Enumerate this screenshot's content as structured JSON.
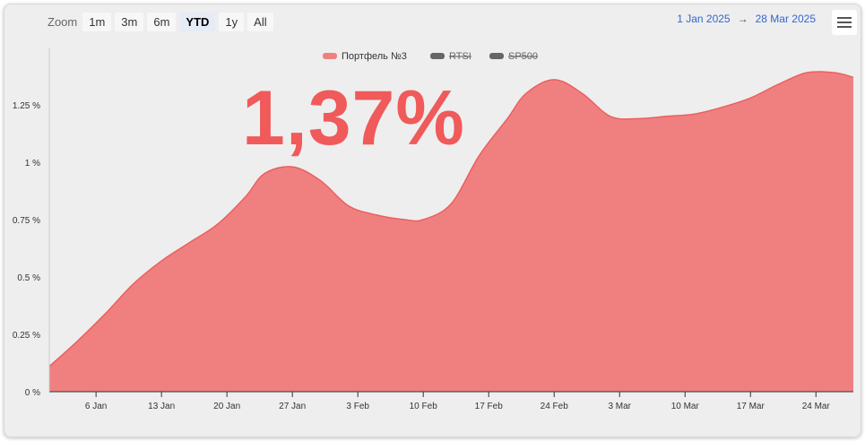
{
  "toolbar": {
    "zoom_label": "Zoom",
    "buttons": [
      "1m",
      "3m",
      "6m",
      "YTD",
      "1y",
      "All"
    ],
    "active": "YTD"
  },
  "range": {
    "from": "1 Jan 2025",
    "arrow": "→",
    "to": "28 Mar 2025"
  },
  "headline_value": "1,37%",
  "colors": {
    "series": "#f08080",
    "series_line": "#ec5f5f",
    "legend_hidden": "#666666"
  },
  "chart_data": {
    "type": "area",
    "legend": [
      {
        "name": "Портфель №3",
        "visible": true,
        "color": "#f08080"
      },
      {
        "name": "RTSI",
        "visible": false,
        "color": "#666666"
      },
      {
        "name": "SP500",
        "visible": false,
        "color": "#666666"
      }
    ],
    "x_ticks": [
      "6 Jan",
      "13 Jan",
      "20 Jan",
      "27 Jan",
      "3 Feb",
      "10 Feb",
      "17 Feb",
      "24 Feb",
      "3 Mar",
      "10 Mar",
      "17 Mar",
      "24 Mar"
    ],
    "y_ticks": [
      "0 %",
      "0.25 %",
      "0.5 %",
      "0.75 %",
      "1 %",
      "1.25 %"
    ],
    "ylim": [
      0,
      1.5
    ],
    "xlim": [
      "2025-01-01",
      "2025-03-28"
    ],
    "series": [
      {
        "name": "Портфель №3",
        "x": [
          "2025-01-01",
          "2025-01-04",
          "2025-01-07",
          "2025-01-10",
          "2025-01-13",
          "2025-01-16",
          "2025-01-19",
          "2025-01-22",
          "2025-01-24",
          "2025-01-27",
          "2025-01-30",
          "2025-02-02",
          "2025-02-05",
          "2025-02-08",
          "2025-02-10",
          "2025-02-13",
          "2025-02-16",
          "2025-02-19",
          "2025-02-21",
          "2025-02-24",
          "2025-02-27",
          "2025-03-02",
          "2025-03-05",
          "2025-03-08",
          "2025-03-11",
          "2025-03-14",
          "2025-03-17",
          "2025-03-20",
          "2025-03-23",
          "2025-03-26",
          "2025-03-28"
        ],
        "y": [
          0.11,
          0.22,
          0.34,
          0.47,
          0.57,
          0.65,
          0.73,
          0.85,
          0.95,
          0.98,
          0.92,
          0.81,
          0.77,
          0.75,
          0.75,
          0.82,
          1.03,
          1.19,
          1.3,
          1.36,
          1.3,
          1.2,
          1.19,
          1.2,
          1.21,
          1.24,
          1.28,
          1.34,
          1.39,
          1.39,
          1.37
        ]
      }
    ]
  }
}
